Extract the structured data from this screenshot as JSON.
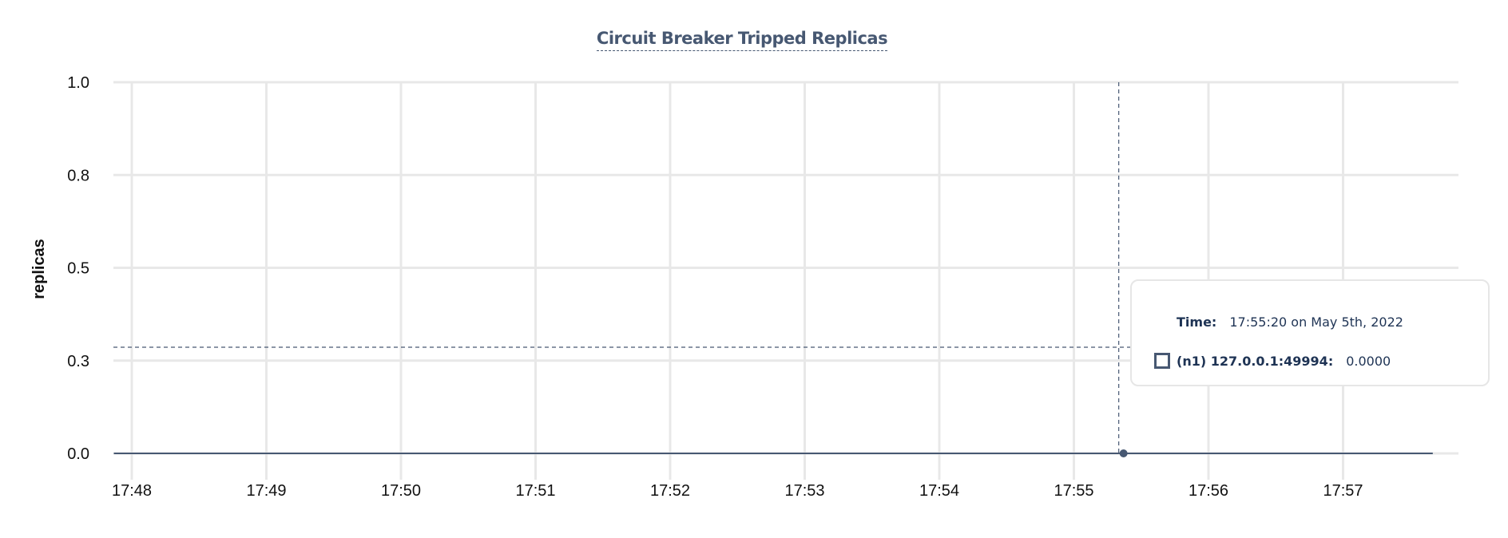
{
  "chart_data": {
    "type": "line",
    "title": "Circuit Breaker Tripped Replicas",
    "xlabel": "",
    "ylabel": "replicas",
    "x_tick_labels": [
      "17:48",
      "17:49",
      "17:50",
      "17:51",
      "17:52",
      "17:53",
      "17:54",
      "17:55",
      "17:56",
      "17:57"
    ],
    "y_tick_labels": [
      "0.0",
      "0.3",
      "0.5",
      "0.8",
      "1.0"
    ],
    "y_tick_values": [
      0,
      0.25,
      0.5,
      0.75,
      1.0
    ],
    "ylim": [
      0,
      1
    ],
    "xlim": [
      "17:47:52",
      "17:57:40"
    ],
    "grid": true,
    "series": [
      {
        "name": "(n1) 127.0.0.1:49994",
        "color": "#475872",
        "x": [
          "17:47:52",
          "17:57:40"
        ],
        "y": [
          0,
          0
        ]
      }
    ],
    "hover": {
      "time": "17:55:20",
      "value": 0
    }
  },
  "tooltip": {
    "time_label": "Time:",
    "time_value": "17:55:20 on May 5th, 2022",
    "series_label": "(n1) 127.0.0.1:49994:",
    "series_value": "0.0000"
  },
  "colors": {
    "series": "#475872",
    "grid": "#e8e8e8",
    "text": "#1e3354"
  }
}
